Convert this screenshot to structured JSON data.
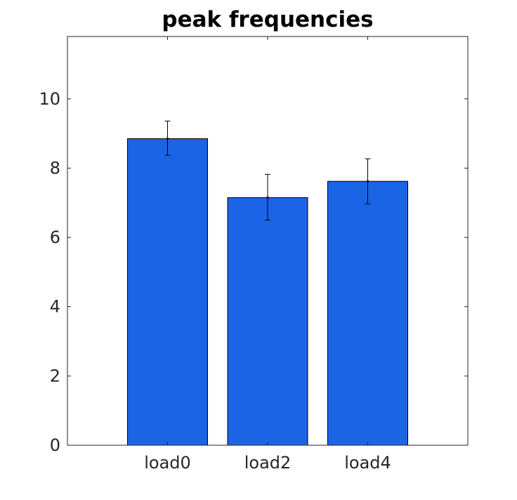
{
  "chart_data": {
    "type": "bar",
    "title": "peak frequencies",
    "xlabel": "",
    "ylabel": "",
    "categories": [
      "load0",
      "load2",
      "load4"
    ],
    "values": [
      8.85,
      7.15,
      7.62
    ],
    "error_low": [
      8.37,
      6.5,
      6.97
    ],
    "error_high": [
      9.36,
      7.82,
      8.27
    ],
    "ylim": [
      0,
      11.8
    ],
    "yticks": [
      0,
      2,
      4,
      6,
      8,
      10
    ],
    "grid": false,
    "legend": "none"
  },
  "colors": {
    "bar_fill": "#1c64e6",
    "bar_edge": "#000000",
    "axis": "#262626",
    "errorbar": "#000000"
  }
}
